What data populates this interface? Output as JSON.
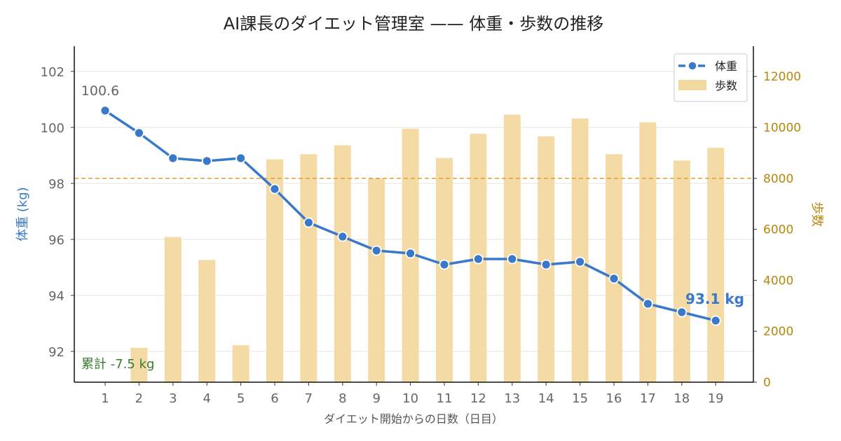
{
  "chart_data": {
    "type": "bar+line",
    "title": "AI課長のダイエット管理室 —— 体重・歩数の推移",
    "xlabel": "ダイエット開始からの日数（日目）",
    "ylabel_left": "体重 (kg)",
    "ylabel_right": "歩数",
    "categories": [
      "1",
      "2",
      "3",
      "4",
      "5",
      "6",
      "7",
      "8",
      "9",
      "10",
      "11",
      "12",
      "13",
      "14",
      "15",
      "16",
      "17",
      "18",
      "19"
    ],
    "series": [
      {
        "name": "体重",
        "type": "line",
        "axis": "left",
        "color": "#3a78c9",
        "values": [
          100.6,
          99.8,
          98.9,
          98.8,
          98.9,
          97.8,
          96.6,
          96.1,
          95.6,
          95.5,
          95.1,
          95.3,
          95.3,
          95.1,
          95.2,
          94.6,
          93.7,
          93.4,
          93.1
        ]
      },
      {
        "name": "歩数",
        "type": "bar",
        "axis": "right",
        "color": "#f3d9a0",
        "values": [
          0,
          1350,
          5700,
          4800,
          1450,
          8750,
          8950,
          9300,
          8000,
          9950,
          8800,
          9750,
          10500,
          9650,
          10350,
          8950,
          10200,
          8700,
          9200
        ]
      }
    ],
    "ylim_left": [
      90.9,
      102.9
    ],
    "ylim_right": [
      0,
      13187
    ],
    "yticks_left": [
      92,
      94,
      96,
      98,
      100,
      102
    ],
    "yticks_right": [
      0,
      2000,
      4000,
      6000,
      8000,
      10000,
      12000
    ],
    "reference_line": {
      "axis": "right",
      "value": 8000,
      "color": "#d9a23a"
    },
    "annotations": {
      "start": "100.6",
      "end": "93.1 kg",
      "total": "累計 -7.5 kg"
    },
    "legend": {
      "position": "top-right",
      "entries": [
        "体重",
        "歩数"
      ]
    },
    "grid": "horizontal",
    "colors": {
      "left_axis_label": "#3a78c9",
      "right_axis": "#b8860b",
      "total_annotation": "#3a7a32"
    }
  }
}
